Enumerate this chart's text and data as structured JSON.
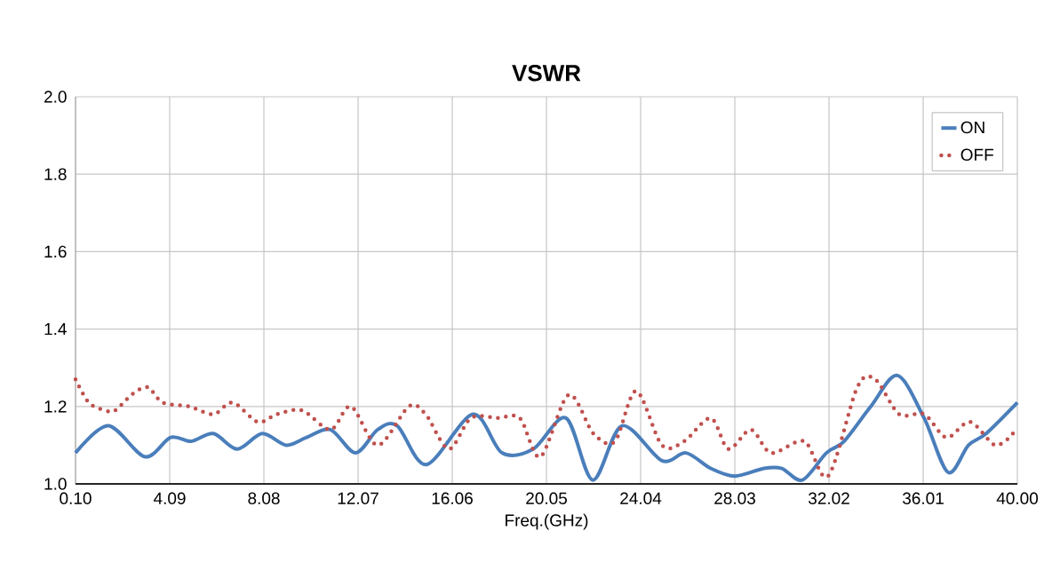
{
  "chart_data": {
    "type": "line",
    "title": "VSWR",
    "xlabel": "Freq.(GHz)",
    "xlim": [
      0.1,
      40.0
    ],
    "ylim": [
      1.0,
      2.0
    ],
    "xticks": [
      {
        "value": 0.1,
        "label": "0.10"
      },
      {
        "value": 4.09,
        "label": "4.09"
      },
      {
        "value": 8.08,
        "label": "8.08"
      },
      {
        "value": 12.07,
        "label": "12.07"
      },
      {
        "value": 16.06,
        "label": "16.06"
      },
      {
        "value": 20.05,
        "label": "20.05"
      },
      {
        "value": 24.04,
        "label": "24.04"
      },
      {
        "value": 28.03,
        "label": "28.03"
      },
      {
        "value": 32.02,
        "label": "32.02"
      },
      {
        "value": 36.01,
        "label": "36.01"
      },
      {
        "value": 40.0,
        "label": "40.00"
      }
    ],
    "yticks": [
      {
        "value": 1.0,
        "label": "1.0"
      },
      {
        "value": 1.2,
        "label": "1.2"
      },
      {
        "value": 1.4,
        "label": "1.4"
      },
      {
        "value": 1.6,
        "label": "1.6"
      },
      {
        "value": 1.8,
        "label": "1.8"
      },
      {
        "value": 2.0,
        "label": "2.0"
      }
    ],
    "grid": true,
    "legend": "top right",
    "series": [
      {
        "name": "ON",
        "color": "#4a7ebb",
        "line_style": "solid",
        "x": [
          0.1,
          1.49,
          3.04,
          4.13,
          5.0,
          5.94,
          6.95,
          8.01,
          9.02,
          9.89,
          10.9,
          11.96,
          12.9,
          13.73,
          14.97,
          16.93,
          18.17,
          19.49,
          20.88,
          22.01,
          23.25,
          24.94,
          25.96,
          27.01,
          28.03,
          29.27,
          30.02,
          30.89,
          31.91,
          32.66,
          33.79,
          34.92,
          36.05,
          37.06,
          37.93,
          38.68,
          40.0
        ],
        "values": [
          1.08,
          1.15,
          1.07,
          1.12,
          1.11,
          1.13,
          1.09,
          1.13,
          1.1,
          1.12,
          1.14,
          1.08,
          1.14,
          1.15,
          1.05,
          1.18,
          1.08,
          1.09,
          1.17,
          1.01,
          1.15,
          1.06,
          1.08,
          1.04,
          1.02,
          1.04,
          1.04,
          1.01,
          1.08,
          1.11,
          1.2,
          1.28,
          1.17,
          1.03,
          1.1,
          1.13,
          1.21
        ]
      },
      {
        "name": "OFF",
        "color": "#c0504d",
        "line_style": "dotted",
        "x": [
          0.1,
          0.66,
          1.34,
          1.79,
          2.47,
          3.15,
          3.79,
          4.92,
          5.94,
          6.76,
          7.82,
          8.64,
          9.7,
          10.9,
          11.77,
          12.9,
          14.22,
          14.93,
          15.91,
          16.85,
          17.98,
          18.92,
          19.79,
          20.99,
          22.04,
          22.95,
          23.85,
          24.94,
          25.88,
          27.01,
          27.76,
          28.71,
          29.57,
          30.97,
          31.98,
          33.22,
          33.98,
          34.99,
          36.05,
          36.99,
          38.0,
          39.06,
          39.81
        ],
        "values": [
          1.27,
          1.21,
          1.19,
          1.19,
          1.23,
          1.25,
          1.21,
          1.2,
          1.18,
          1.21,
          1.16,
          1.18,
          1.19,
          1.14,
          1.2,
          1.1,
          1.2,
          1.18,
          1.09,
          1.17,
          1.17,
          1.17,
          1.07,
          1.23,
          1.13,
          1.11,
          1.24,
          1.1,
          1.11,
          1.17,
          1.09,
          1.14,
          1.08,
          1.11,
          1.02,
          1.25,
          1.27,
          1.18,
          1.18,
          1.12,
          1.16,
          1.1,
          1.13
        ]
      }
    ]
  }
}
